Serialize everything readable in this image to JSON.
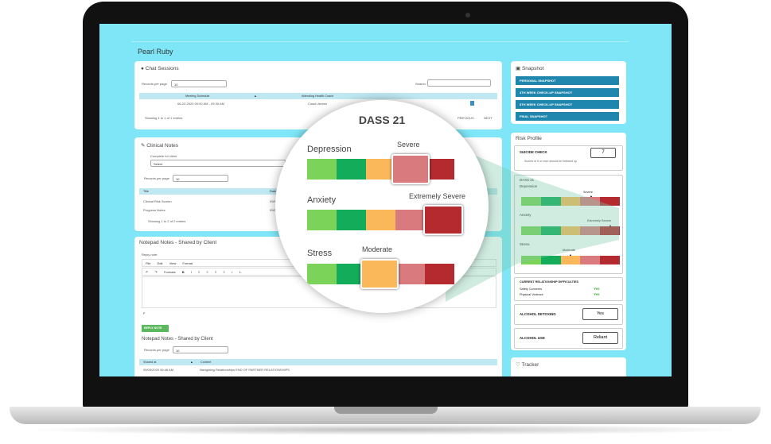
{
  "page_title": "Pearl Ruby",
  "chat": {
    "title": "Chat Sessions",
    "records_label": "Records per page",
    "records_value": "10",
    "search_label": "Search:",
    "columns": [
      "Meeting Schedule",
      "Attending Health Coach"
    ],
    "row": {
      "schedule": "06-22-2020 09:00 AM - 09:30 AM",
      "coach": "Coach Amber"
    },
    "showing": "Showing 1 to 1 of 1 entries",
    "previous": "PREVIOUS",
    "next": "NEXT"
  },
  "clinical": {
    "title": "Clinical Notes",
    "complete_label": "Complete for client",
    "select_value": "Select",
    "records_label": "Records per page",
    "records_value": "10",
    "col_title": "Title",
    "col_date": "Date C",
    "rows": [
      "Clinical Risk Screen",
      "Progress Notes"
    ],
    "dates": [
      "09/0",
      "09/0"
    ],
    "showing": "Showing 1 to 2 of 2 entries"
  },
  "notepad": {
    "title": "Notepad Notes - Shared by Client",
    "reply_label": "Reply note:",
    "menu": [
      "File",
      "Edit",
      "View",
      "Format"
    ],
    "formats": "Formats",
    "footer_p": "p",
    "reply_button": "REPLY NOTE",
    "list_title": "Notepad Notes - Shared by Client",
    "records_label": "Records per page",
    "records_value": "10",
    "col_shared": "Shared at",
    "col_content": "Content",
    "row_date": "09/09/2020 06:48 AM",
    "row_content": "Navigating Relationships END OF PARTNER RELATIONSHIPS"
  },
  "snapshot": {
    "title": "Snapshot",
    "buttons": [
      "PERSONAL SNAPSHOT",
      "4TH WEEK CHECK-UP SNAPSHOT",
      "8TH WEEK CHECK-UP SNAPSHOT",
      "FINAL SNAPSHOT"
    ]
  },
  "risk": {
    "title": "Risk Profile",
    "suicide_label": "SUICIDE CHECK",
    "suicide_value": "7",
    "suicide_note": "Scores of 5 or over should be followed up",
    "dass_title": "DASS 21",
    "depression": {
      "label": "Depression",
      "level": "Severe"
    },
    "anxiety": {
      "label": "Anxiety",
      "level": "Extremely Severe"
    },
    "stress": {
      "label": "Stress",
      "level": "Moderate"
    },
    "relationship_title": "CURRENT RELATIONSHIP DIFFICULTIES",
    "safety_label": "Safety Concerns",
    "safety_value": "Yes",
    "violence_label": "Physical Violence",
    "violence_value": "Yes",
    "detox_label": "ALCOHOL DETOXING",
    "detox_value": "Yes",
    "use_label": "ALCOHOL USE",
    "use_value": "Reliant"
  },
  "tracker": {
    "title": "Tracker"
  },
  "zoom": {
    "title": "DASS 21",
    "depression": {
      "label": "Depression",
      "level": "Severe"
    },
    "anxiety": {
      "label": "Anxiety",
      "level": "Extremely Severe"
    },
    "stress": {
      "label": "Stress",
      "level": "Moderate"
    }
  },
  "scale_colors": [
    "#7bd35a",
    "#13ac5a",
    "#fbb85a",
    "#d97a7e",
    "#b52a2e"
  ],
  "accent": "#1f86ad"
}
